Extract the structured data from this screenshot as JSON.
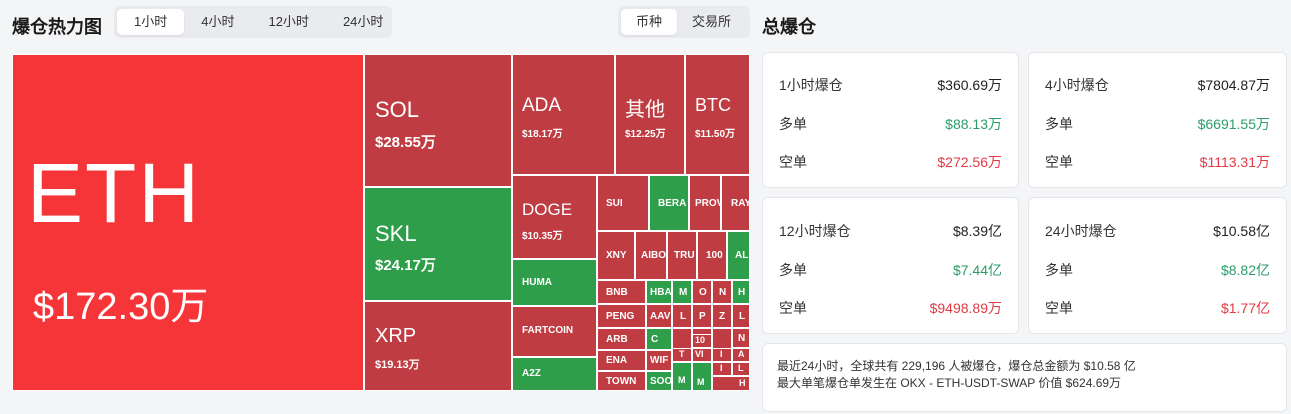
{
  "header": {
    "title": "爆仓热力图",
    "timeframes": [
      "1小时",
      "4小时",
      "12小时",
      "24小时"
    ],
    "timeframe_active": 0,
    "groupby": [
      "币种",
      "交易所"
    ],
    "groupby_active": 0,
    "total_title": "总爆仓"
  },
  "treemap": [
    {
      "sym": "ETH",
      "amt": "$172.30万"
    },
    {
      "sym": "SOL",
      "amt": "$28.55万"
    },
    {
      "sym": "SKL",
      "amt": "$24.17万"
    },
    {
      "sym": "XRP",
      "amt": "$19.13万"
    },
    {
      "sym": "ADA",
      "amt": "$18.17万"
    },
    {
      "sym": "其他",
      "amt": "$12.25万"
    },
    {
      "sym": "BTC",
      "amt": "$11.50万"
    },
    {
      "sym": "DOGE",
      "amt": "$10.35万"
    },
    {
      "sym": "HUMA",
      "amt": ""
    },
    {
      "sym": "FARTCOIN",
      "amt": ""
    },
    {
      "sym": "A2Z",
      "amt": ""
    },
    {
      "sym": "SUI",
      "amt": ""
    },
    {
      "sym": "BERA",
      "amt": ""
    },
    {
      "sym": "PROVE",
      "amt": ""
    },
    {
      "sym": "RAY",
      "amt": ""
    },
    {
      "sym": "XNY",
      "amt": ""
    },
    {
      "sym": "AIBO",
      "amt": ""
    },
    {
      "sym": "TRU",
      "amt": ""
    },
    {
      "sym": "100",
      "amt": ""
    },
    {
      "sym": "ALI",
      "amt": ""
    },
    {
      "sym": "BNB",
      "amt": ""
    },
    {
      "sym": "HBA",
      "amt": ""
    },
    {
      "sym": "M",
      "amt": ""
    },
    {
      "sym": "O",
      "amt": ""
    },
    {
      "sym": "N",
      "amt": ""
    },
    {
      "sym": "H",
      "amt": ""
    },
    {
      "sym": "PENG",
      "amt": ""
    },
    {
      "sym": "AAV",
      "amt": ""
    },
    {
      "sym": "L",
      "amt": ""
    },
    {
      "sym": "P",
      "amt": ""
    },
    {
      "sym": "Z",
      "amt": ""
    },
    {
      "sym": "L",
      "amt": ""
    },
    {
      "sym": "N",
      "amt": ""
    },
    {
      "sym": "ARB",
      "amt": ""
    },
    {
      "sym": "C",
      "amt": ""
    },
    {
      "sym": "10",
      "amt": ""
    },
    {
      "sym": "I",
      "amt": ""
    },
    {
      "sym": "A",
      "amt": ""
    },
    {
      "sym": "ENA",
      "amt": ""
    },
    {
      "sym": "WIF",
      "amt": ""
    },
    {
      "sym": "T",
      "amt": ""
    },
    {
      "sym": "VI",
      "amt": ""
    },
    {
      "sym": "I",
      "amt": ""
    },
    {
      "sym": "L",
      "amt": ""
    },
    {
      "sym": "TOWN",
      "amt": ""
    },
    {
      "sym": "SOO",
      "amt": ""
    },
    {
      "sym": "M",
      "amt": ""
    },
    {
      "sym": "M",
      "amt": ""
    },
    {
      "sym": "H",
      "amt": ""
    }
  ],
  "cards": [
    {
      "title": "1小时爆仓",
      "total": "$360.69万",
      "long_label": "多单",
      "long": "$88.13万",
      "short_label": "空单",
      "short": "$272.56万"
    },
    {
      "title": "4小时爆仓",
      "total": "$7804.87万",
      "long_label": "多单",
      "long": "$6691.55万",
      "short_label": "空单",
      "short": "$1113.31万"
    },
    {
      "title": "12小时爆仓",
      "total": "$8.39亿",
      "long_label": "多单",
      "long": "$7.44亿",
      "short_label": "空单",
      "short": "$9498.89万"
    },
    {
      "title": "24小时爆仓",
      "total": "$10.58亿",
      "long_label": "多单",
      "long": "$8.82亿",
      "short_label": "空单",
      "short": "$1.77亿"
    }
  ],
  "summary": {
    "line1": "最近24小时，全球共有 229,196 人被爆仓，爆仓总金额为 $10.58 亿",
    "line2": "最大单笔爆仓单发生在 OKX - ETH-USDT-SWAP 价值 $624.69万"
  },
  "colors": {
    "liq_red": "#bf3c42",
    "liq_bright_red": "#f53538",
    "liq_green": "#2f9e4a",
    "long_text": "#2a9d6a",
    "short_text": "#e23a45"
  }
}
